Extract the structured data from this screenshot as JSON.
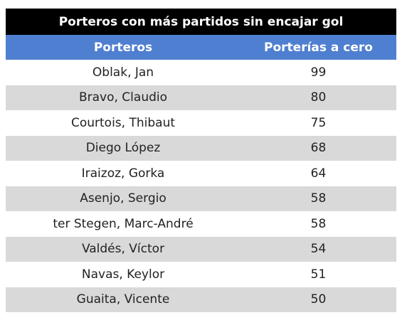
{
  "title": "Porteros con más partidos sin encajar gol",
  "columns": [
    "Porteros",
    "Porterías a cero"
  ],
  "rows": [
    {
      "name": "Oblak, Jan",
      "value": "99"
    },
    {
      "name": "Bravo, Claudio",
      "value": "80"
    },
    {
      "name": "Courtois, Thibaut",
      "value": "75"
    },
    {
      "name": "Diego López",
      "value": "68"
    },
    {
      "name": "Iraizoz, Gorka",
      "value": "64"
    },
    {
      "name": "Asenjo, Sergio",
      "value": "58"
    },
    {
      "name": "ter Stegen, Marc-André",
      "value": "58"
    },
    {
      "name": "Valdés, Víctor",
      "value": "54"
    },
    {
      "name": "Navas, Keylor",
      "value": "51"
    },
    {
      "name": "Guaita, Vicente",
      "value": "50"
    }
  ]
}
